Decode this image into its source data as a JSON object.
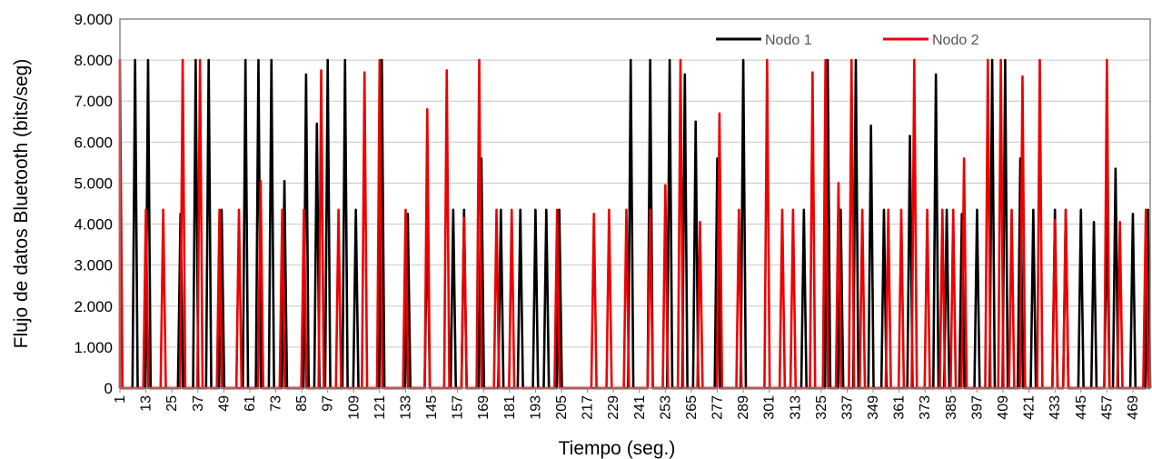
{
  "chart_data": {
    "type": "line",
    "title": "",
    "xlabel": "Tiempo (seg.)",
    "ylabel": "Flujo de datos Bluetooth (bits/seg)",
    "ylim": [
      0,
      9000
    ],
    "xlim": [
      1,
      477
    ],
    "y_ticks": [
      "0",
      "1.000",
      "2.000",
      "3.000",
      "4.000",
      "5.000",
      "6.000",
      "7.000",
      "8.000",
      "9.000"
    ],
    "x_ticks": [
      "1",
      "13",
      "25",
      "37",
      "49",
      "61",
      "73",
      "85",
      "97",
      "109",
      "121",
      "133",
      "145",
      "157",
      "169",
      "181",
      "193",
      "205",
      "217",
      "229",
      "241",
      "253",
      "265",
      "277",
      "289",
      "301",
      "313",
      "325",
      "337",
      "349",
      "361",
      "373",
      "385",
      "397",
      "409",
      "421",
      "433",
      "445",
      "457",
      "469"
    ],
    "grid": "horizontal",
    "legend_position": "top-right",
    "series": [
      {
        "name": "Nodo 1",
        "color": "#000000",
        "peaks": [
          [
            8,
            8000
          ],
          [
            14,
            8000
          ],
          [
            29,
            4250
          ],
          [
            36,
            8000
          ],
          [
            42,
            8000
          ],
          [
            48,
            4350
          ],
          [
            59,
            8000
          ],
          [
            65,
            8000
          ],
          [
            71,
            8000
          ],
          [
            77,
            5050
          ],
          [
            87,
            7650
          ],
          [
            92,
            6450
          ],
          [
            97,
            8000
          ],
          [
            105,
            8000
          ],
          [
            110,
            4350
          ],
          [
            122,
            8000
          ],
          [
            134,
            4250
          ],
          [
            143,
            4350
          ],
          [
            155,
            4350
          ],
          [
            160,
            4350
          ],
          [
            168,
            5600
          ],
          [
            177,
            4350
          ],
          [
            186,
            4350
          ],
          [
            193,
            4350
          ],
          [
            198,
            4350
          ],
          [
            204,
            4350
          ],
          [
            237,
            8000
          ],
          [
            246,
            8000
          ],
          [
            255,
            8000
          ],
          [
            262,
            7650
          ],
          [
            267,
            6500
          ],
          [
            277,
            5600
          ],
          [
            289,
            8000
          ],
          [
            317,
            4350
          ],
          [
            328,
            8000
          ],
          [
            334,
            4350
          ],
          [
            341,
            8000
          ],
          [
            348,
            6400
          ],
          [
            354,
            4350
          ],
          [
            366,
            6150
          ],
          [
            378,
            7650
          ],
          [
            383,
            4350
          ],
          [
            390,
            4250
          ],
          [
            397,
            4350
          ],
          [
            404,
            8000
          ],
          [
            410,
            8000
          ],
          [
            417,
            5600
          ],
          [
            423,
            4350
          ],
          [
            433,
            4350
          ],
          [
            438,
            4350
          ],
          [
            445,
            4350
          ],
          [
            451,
            4050
          ],
          [
            457,
            4350
          ],
          [
            461,
            5350
          ],
          [
            469,
            4250
          ],
          [
            476,
            4350
          ]
        ]
      },
      {
        "name": "Nodo 2",
        "color": "#ee0000",
        "peaks": [
          [
            1,
            8000
          ],
          [
            13,
            4350
          ],
          [
            21,
            4350
          ],
          [
            30,
            8000
          ],
          [
            38,
            8000
          ],
          [
            47,
            4350
          ],
          [
            56,
            4350
          ],
          [
            66,
            5050
          ],
          [
            76,
            4350
          ],
          [
            86,
            4350
          ],
          [
            94,
            7750
          ],
          [
            102,
            4350
          ],
          [
            114,
            7700
          ],
          [
            121,
            8000
          ],
          [
            133,
            4350
          ],
          [
            143,
            6800
          ],
          [
            152,
            7750
          ],
          [
            160,
            4150
          ],
          [
            167,
            8000
          ],
          [
            175,
            4350
          ],
          [
            182,
            4350
          ],
          [
            203,
            4350
          ],
          [
            220,
            4250
          ],
          [
            227,
            4350
          ],
          [
            235,
            4350
          ],
          [
            246,
            4350
          ],
          [
            253,
            4950
          ],
          [
            260,
            8000
          ],
          [
            269,
            4050
          ],
          [
            278,
            6700
          ],
          [
            287,
            4350
          ],
          [
            300,
            8000
          ],
          [
            307,
            4350
          ],
          [
            312,
            4350
          ],
          [
            321,
            7700
          ],
          [
            327,
            8000
          ],
          [
            333,
            5000
          ],
          [
            339,
            8000
          ],
          [
            344,
            4350
          ],
          [
            356,
            4350
          ],
          [
            362,
            4350
          ],
          [
            368,
            8000
          ],
          [
            374,
            4350
          ],
          [
            381,
            4350
          ],
          [
            386,
            4350
          ],
          [
            391,
            5600
          ],
          [
            402,
            8000
          ],
          [
            408,
            8000
          ],
          [
            413,
            4350
          ],
          [
            418,
            7600
          ],
          [
            426,
            8000
          ],
          [
            433,
            4100
          ],
          [
            438,
            4350
          ],
          [
            457,
            8000
          ],
          [
            463,
            4050
          ],
          [
            475,
            4350
          ]
        ]
      }
    ]
  }
}
